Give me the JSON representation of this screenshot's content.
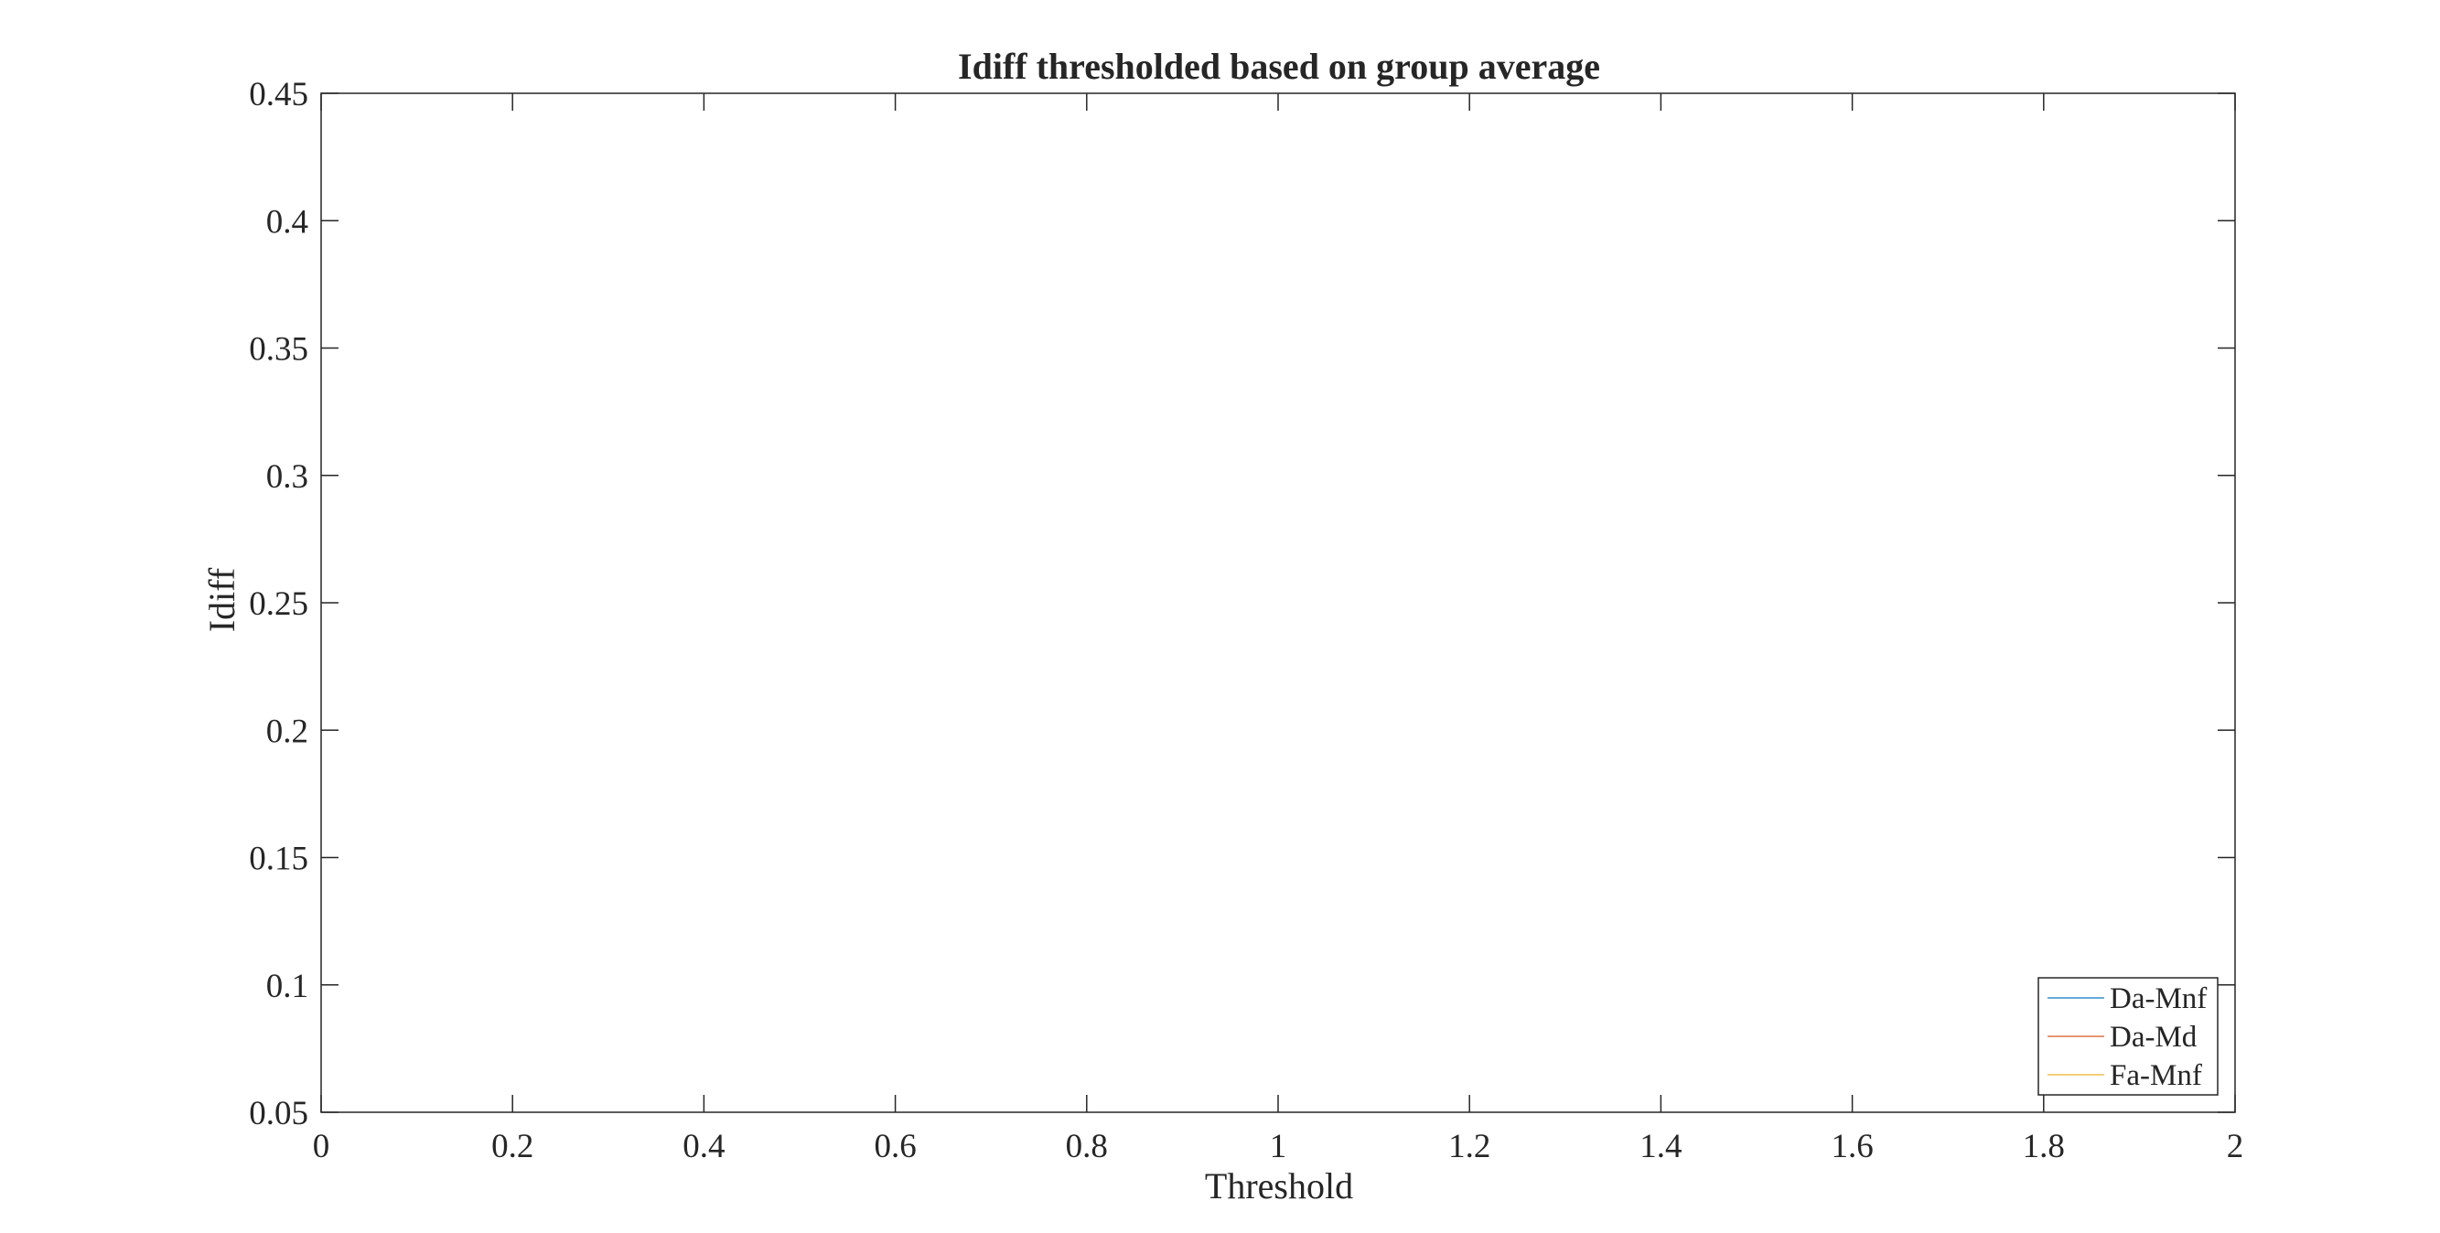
{
  "chart_data": {
    "type": "line",
    "title": "Idiff thresholded based on group average",
    "xlabel": "Threshold",
    "ylabel": "Idiff",
    "xlim": [
      0,
      2
    ],
    "ylim": [
      0.05,
      0.45
    ],
    "x_ticks": [
      "0",
      "0.2",
      "0.4",
      "0.6",
      "0.8",
      "1",
      "1.2",
      "1.4",
      "1.6",
      "1.8",
      "2"
    ],
    "y_ticks": [
      "0.05",
      "0.1",
      "0.15",
      "0.2",
      "0.25",
      "0.3",
      "0.35",
      "0.4",
      "0.45"
    ],
    "grid": false,
    "legend_position": "bottom-right",
    "series": [
      {
        "name": "Da-Mnf",
        "color": "#0072BD",
        "x": [],
        "y": []
      },
      {
        "name": "Da-Md",
        "color": "#D95319",
        "x": [],
        "y": []
      },
      {
        "name": "Fa-Mnf",
        "color": "#EDB120",
        "x": [],
        "y": []
      }
    ]
  }
}
